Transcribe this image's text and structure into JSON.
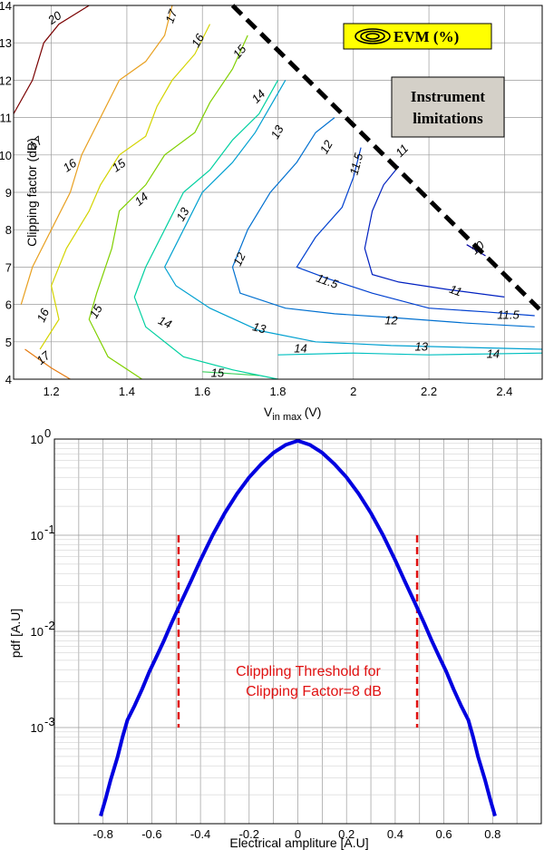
{
  "chart_data": [
    {
      "type": "contour",
      "xlabel": "V",
      "xlabel_sub": "in max",
      "xlabel_unit": "(V)",
      "ylabel": "Clipping factor (dB)",
      "xlim": [
        1.1,
        2.5
      ],
      "ylim": [
        4,
        14
      ],
      "x_ticks": [
        1.2,
        1.4,
        1.6,
        1.8,
        2,
        2.2,
        2.4
      ],
      "x_tick_labels": [
        "1.2",
        "1.4",
        "1.6",
        "1.8",
        "2",
        "2.2",
        "2.4"
      ],
      "y_ticks": [
        4,
        5,
        6,
        7,
        8,
        9,
        10,
        11,
        12,
        13,
        14
      ],
      "grid": true,
      "legend": {
        "label": "EVM (%)",
        "position": "top-right",
        "background": "#ffff00"
      },
      "annotation": {
        "text_line1": "Instrument",
        "text_line2": "limitations",
        "background": "#d4d0c8"
      },
      "limit_line": {
        "from": [
          1.68,
          14
        ],
        "to": [
          2.5,
          5.8
        ],
        "style": "dashed",
        "color": "#000000"
      },
      "contours": [
        {
          "level": "20",
          "color": "#7a0000",
          "points": [
            [
              1.1,
              11.1
            ],
            [
              1.15,
              12.0
            ],
            [
              1.18,
              13.0
            ],
            [
              1.22,
              13.5
            ],
            [
              1.3,
              14.0
            ]
          ]
        },
        {
          "level": "17",
          "color": "#e57a10",
          "points": [
            [
              1.13,
              4.8
            ],
            [
              1.2,
              4.3
            ],
            [
              1.25,
              4.0
            ]
          ]
        },
        {
          "level": "17",
          "color": "#e8a020",
          "points": [
            [
              1.12,
              6.0
            ],
            [
              1.15,
              7.0
            ],
            [
              1.2,
              8.0
            ],
            [
              1.25,
              9.0
            ],
            [
              1.28,
              10.0
            ],
            [
              1.33,
              11.0
            ],
            [
              1.38,
              12.0
            ],
            [
              1.45,
              12.5
            ],
            [
              1.5,
              13.2
            ],
            [
              1.52,
              14.0
            ]
          ]
        },
        {
          "level": "16",
          "color": "#d4d400",
          "points": [
            [
              1.17,
              4.8
            ],
            [
              1.22,
              5.6
            ],
            [
              1.2,
              6.5
            ],
            [
              1.24,
              7.5
            ],
            [
              1.3,
              8.5
            ],
            [
              1.33,
              9.2
            ],
            [
              1.38,
              10.0
            ],
            [
              1.45,
              10.5
            ],
            [
              1.48,
              11.3
            ],
            [
              1.52,
              12.0
            ],
            [
              1.58,
              12.7
            ],
            [
              1.62,
              13.5
            ]
          ]
        },
        {
          "level": "15",
          "color": "#80d000",
          "points": [
            [
              1.44,
              4.0
            ],
            [
              1.35,
              4.6
            ],
            [
              1.3,
              5.6
            ],
            [
              1.32,
              6.3
            ],
            [
              1.36,
              7.5
            ],
            [
              1.38,
              8.5
            ],
            [
              1.45,
              9.2
            ],
            [
              1.5,
              10.0
            ],
            [
              1.58,
              10.6
            ],
            [
              1.62,
              11.4
            ],
            [
              1.68,
              12.3
            ],
            [
              1.72,
              13.2
            ]
          ]
        },
        {
          "level": "15",
          "color": "#40d060",
          "points": [
            [
              1.6,
              4.2
            ],
            [
              1.75,
              4.1
            ]
          ]
        },
        {
          "level": "14",
          "color": "#00d0a0",
          "points": [
            [
              1.8,
              4.0
            ],
            [
              1.68,
              4.25
            ],
            [
              1.55,
              4.6
            ],
            [
              1.45,
              5.4
            ],
            [
              1.42,
              6.2
            ],
            [
              1.45,
              7.0
            ],
            [
              1.5,
              8.0
            ],
            [
              1.55,
              9.0
            ],
            [
              1.62,
              9.6
            ],
            [
              1.68,
              10.4
            ],
            [
              1.75,
              11.1
            ],
            [
              1.8,
              12.0
            ]
          ]
        },
        {
          "level": "14",
          "color": "#00c0c0",
          "points": [
            [
              1.8,
              4.65
            ],
            [
              2.0,
              4.7
            ],
            [
              2.2,
              4.65
            ],
            [
              2.5,
              4.7
            ]
          ]
        },
        {
          "level": "13",
          "color": "#00a0d0",
          "points": [
            [
              2.5,
              4.8
            ],
            [
              2.3,
              4.85
            ],
            [
              2.1,
              4.9
            ],
            [
              1.9,
              5.0
            ],
            [
              1.75,
              5.3
            ],
            [
              1.62,
              5.9
            ],
            [
              1.53,
              6.5
            ],
            [
              1.5,
              7.0
            ],
            [
              1.55,
              8.0
            ],
            [
              1.6,
              9.0
            ],
            [
              1.68,
              9.8
            ],
            [
              1.74,
              10.6
            ],
            [
              1.78,
              11.3
            ],
            [
              1.82,
              12.0
            ]
          ]
        },
        {
          "level": "12",
          "color": "#0070d0",
          "points": [
            [
              2.48,
              5.4
            ],
            [
              2.3,
              5.5
            ],
            [
              2.1,
              5.65
            ],
            [
              1.95,
              5.75
            ],
            [
              1.82,
              5.9
            ],
            [
              1.7,
              6.3
            ],
            [
              1.68,
              7.0
            ],
            [
              1.72,
              8.0
            ],
            [
              1.78,
              9.0
            ],
            [
              1.85,
              9.8
            ],
            [
              1.9,
              10.6
            ],
            [
              1.95,
              11.0
            ]
          ]
        },
        {
          "level": "11.5",
          "color": "#0040d0",
          "points": [
            [
              2.48,
              5.7
            ],
            [
              2.35,
              5.8
            ],
            [
              2.2,
              5.9
            ],
            [
              2.05,
              6.3
            ],
            [
              1.93,
              6.7
            ],
            [
              1.85,
              7.0
            ],
            [
              1.9,
              7.8
            ],
            [
              1.97,
              8.6
            ],
            [
              2.0,
              9.4
            ],
            [
              2.02,
              10.2
            ]
          ]
        },
        {
          "level": "11",
          "color": "#0020c0",
          "points": [
            [
              2.4,
              6.2
            ],
            [
              2.25,
              6.4
            ],
            [
              2.12,
              6.6
            ],
            [
              2.05,
              6.8
            ],
            [
              2.03,
              7.5
            ],
            [
              2.05,
              8.5
            ],
            [
              2.08,
              9.2
            ],
            [
              2.12,
              9.7
            ]
          ]
        },
        {
          "level": "10",
          "color": "#0000a0",
          "points": [
            [
              2.3,
              7.6
            ],
            [
              2.35,
              7.3
            ]
          ]
        }
      ],
      "contour_labels": [
        {
          "text": "20",
          "x": 1.21,
          "y": 13.65,
          "rot": -35
        },
        {
          "text": "17",
          "x": 1.52,
          "y": 13.7,
          "rot": -70
        },
        {
          "text": "16",
          "x": 1.59,
          "y": 13.05,
          "rot": -60
        },
        {
          "text": "15",
          "x": 1.7,
          "y": 12.75,
          "rot": -50
        },
        {
          "text": "14",
          "x": 1.75,
          "y": 11.55,
          "rot": -45
        },
        {
          "text": "13",
          "x": 1.8,
          "y": 10.6,
          "rot": -60
        },
        {
          "text": "12",
          "x": 1.93,
          "y": 10.2,
          "rot": -60
        },
        {
          "text": "11.5",
          "x": 2.01,
          "y": 9.75,
          "rot": -75
        },
        {
          "text": "11",
          "x": 2.13,
          "y": 10.1,
          "rot": -45
        },
        {
          "text": "10",
          "x": 2.33,
          "y": 7.5,
          "rot": -40
        },
        {
          "text": "17",
          "x": 1.16,
          "y": 10.3,
          "rot": -40
        },
        {
          "text": "16",
          "x": 1.25,
          "y": 9.7,
          "rot": -35
        },
        {
          "text": "15",
          "x": 1.38,
          "y": 9.7,
          "rot": -35
        },
        {
          "text": "14",
          "x": 1.44,
          "y": 8.8,
          "rot": -40
        },
        {
          "text": "13",
          "x": 1.55,
          "y": 8.4,
          "rot": -60
        },
        {
          "text": "12",
          "x": 1.7,
          "y": 7.2,
          "rot": -65
        },
        {
          "text": "11.5",
          "x": 1.93,
          "y": 6.6,
          "rot": 20
        },
        {
          "text": "11",
          "x": 2.27,
          "y": 6.35,
          "rot": 20
        },
        {
          "text": "11.5",
          "x": 2.41,
          "y": 5.7,
          "rot": 0
        },
        {
          "text": "12",
          "x": 2.1,
          "y": 5.55,
          "rot": 0
        },
        {
          "text": "13",
          "x": 2.18,
          "y": 4.85,
          "rot": 0
        },
        {
          "text": "14",
          "x": 2.37,
          "y": 4.65,
          "rot": 0
        },
        {
          "text": "13",
          "x": 1.75,
          "y": 5.35,
          "rot": 15
        },
        {
          "text": "14",
          "x": 1.5,
          "y": 5.5,
          "rot": 25
        },
        {
          "text": "14",
          "x": 1.86,
          "y": 4.8,
          "rot": 0
        },
        {
          "text": "15",
          "x": 1.32,
          "y": 5.8,
          "rot": -60
        },
        {
          "text": "15",
          "x": 1.64,
          "y": 4.15,
          "rot": 0
        },
        {
          "text": "16",
          "x": 1.18,
          "y": 5.7,
          "rot": -65
        },
        {
          "text": "17",
          "x": 1.18,
          "y": 4.55,
          "rot": -40
        }
      ]
    },
    {
      "type": "line",
      "xlabel": "Electrical ampliture [A.U]",
      "ylabel": "pdf [A.U]",
      "xlim": [
        -1.0,
        1.0
      ],
      "ylim_log": [
        0.0001,
        1
      ],
      "y_scale": "log",
      "x_ticks": [
        -0.8,
        -0.6,
        -0.4,
        -0.2,
        0,
        0.2,
        0.4,
        0.6,
        0.8
      ],
      "x_tick_labels": [
        "-0.8",
        "-0.6",
        "-0.4",
        "-0.2",
        "0",
        "0.2",
        "0.4",
        "0.6",
        "0.8"
      ],
      "y_tick_base": "10",
      "y_ticks": [
        {
          "value": 1,
          "exp": "0"
        },
        {
          "value": 0.1,
          "exp": "-1"
        },
        {
          "value": 0.01,
          "exp": "-2"
        },
        {
          "value": 0.001,
          "exp": "-3"
        }
      ],
      "grid": true,
      "series": [
        {
          "color": "#0000e0",
          "x": [
            -0.81,
            -0.79,
            -0.77,
            -0.74,
            -0.72,
            -0.7,
            -0.67,
            -0.64,
            -0.61,
            -0.58,
            -0.55,
            -0.52,
            -0.48,
            -0.44,
            -0.4,
            -0.35,
            -0.3,
            -0.25,
            -0.2,
            -0.15,
            -0.1,
            -0.05,
            0,
            0.05,
            0.1,
            0.15,
            0.2,
            0.25,
            0.3,
            0.35,
            0.4,
            0.44,
            0.48,
            0.52,
            0.55,
            0.58,
            0.61,
            0.64,
            0.67,
            0.7,
            0.72,
            0.74,
            0.77,
            0.79,
            0.81
          ],
          "y": [
            0.00012,
            0.00018,
            0.00028,
            0.0005,
            0.0008,
            0.0012,
            0.0017,
            0.0025,
            0.0038,
            0.0055,
            0.008,
            0.012,
            0.02,
            0.033,
            0.055,
            0.1,
            0.17,
            0.27,
            0.4,
            0.55,
            0.72,
            0.87,
            0.96,
            0.87,
            0.72,
            0.55,
            0.4,
            0.27,
            0.17,
            0.1,
            0.055,
            0.033,
            0.02,
            0.012,
            0.008,
            0.0055,
            0.0038,
            0.0025,
            0.0017,
            0.0012,
            0.0008,
            0.0005,
            0.00028,
            0.00018,
            0.00012
          ]
        }
      ],
      "thresholds": {
        "x": [
          -0.49,
          0.49
        ],
        "y_from": 0.001,
        "y_to": 0.1,
        "color": "#e01010",
        "style": "dashed"
      },
      "annotation": {
        "line1": "Clippling Threshold for",
        "line2": "Clipping Factor=8 dB"
      }
    }
  ]
}
